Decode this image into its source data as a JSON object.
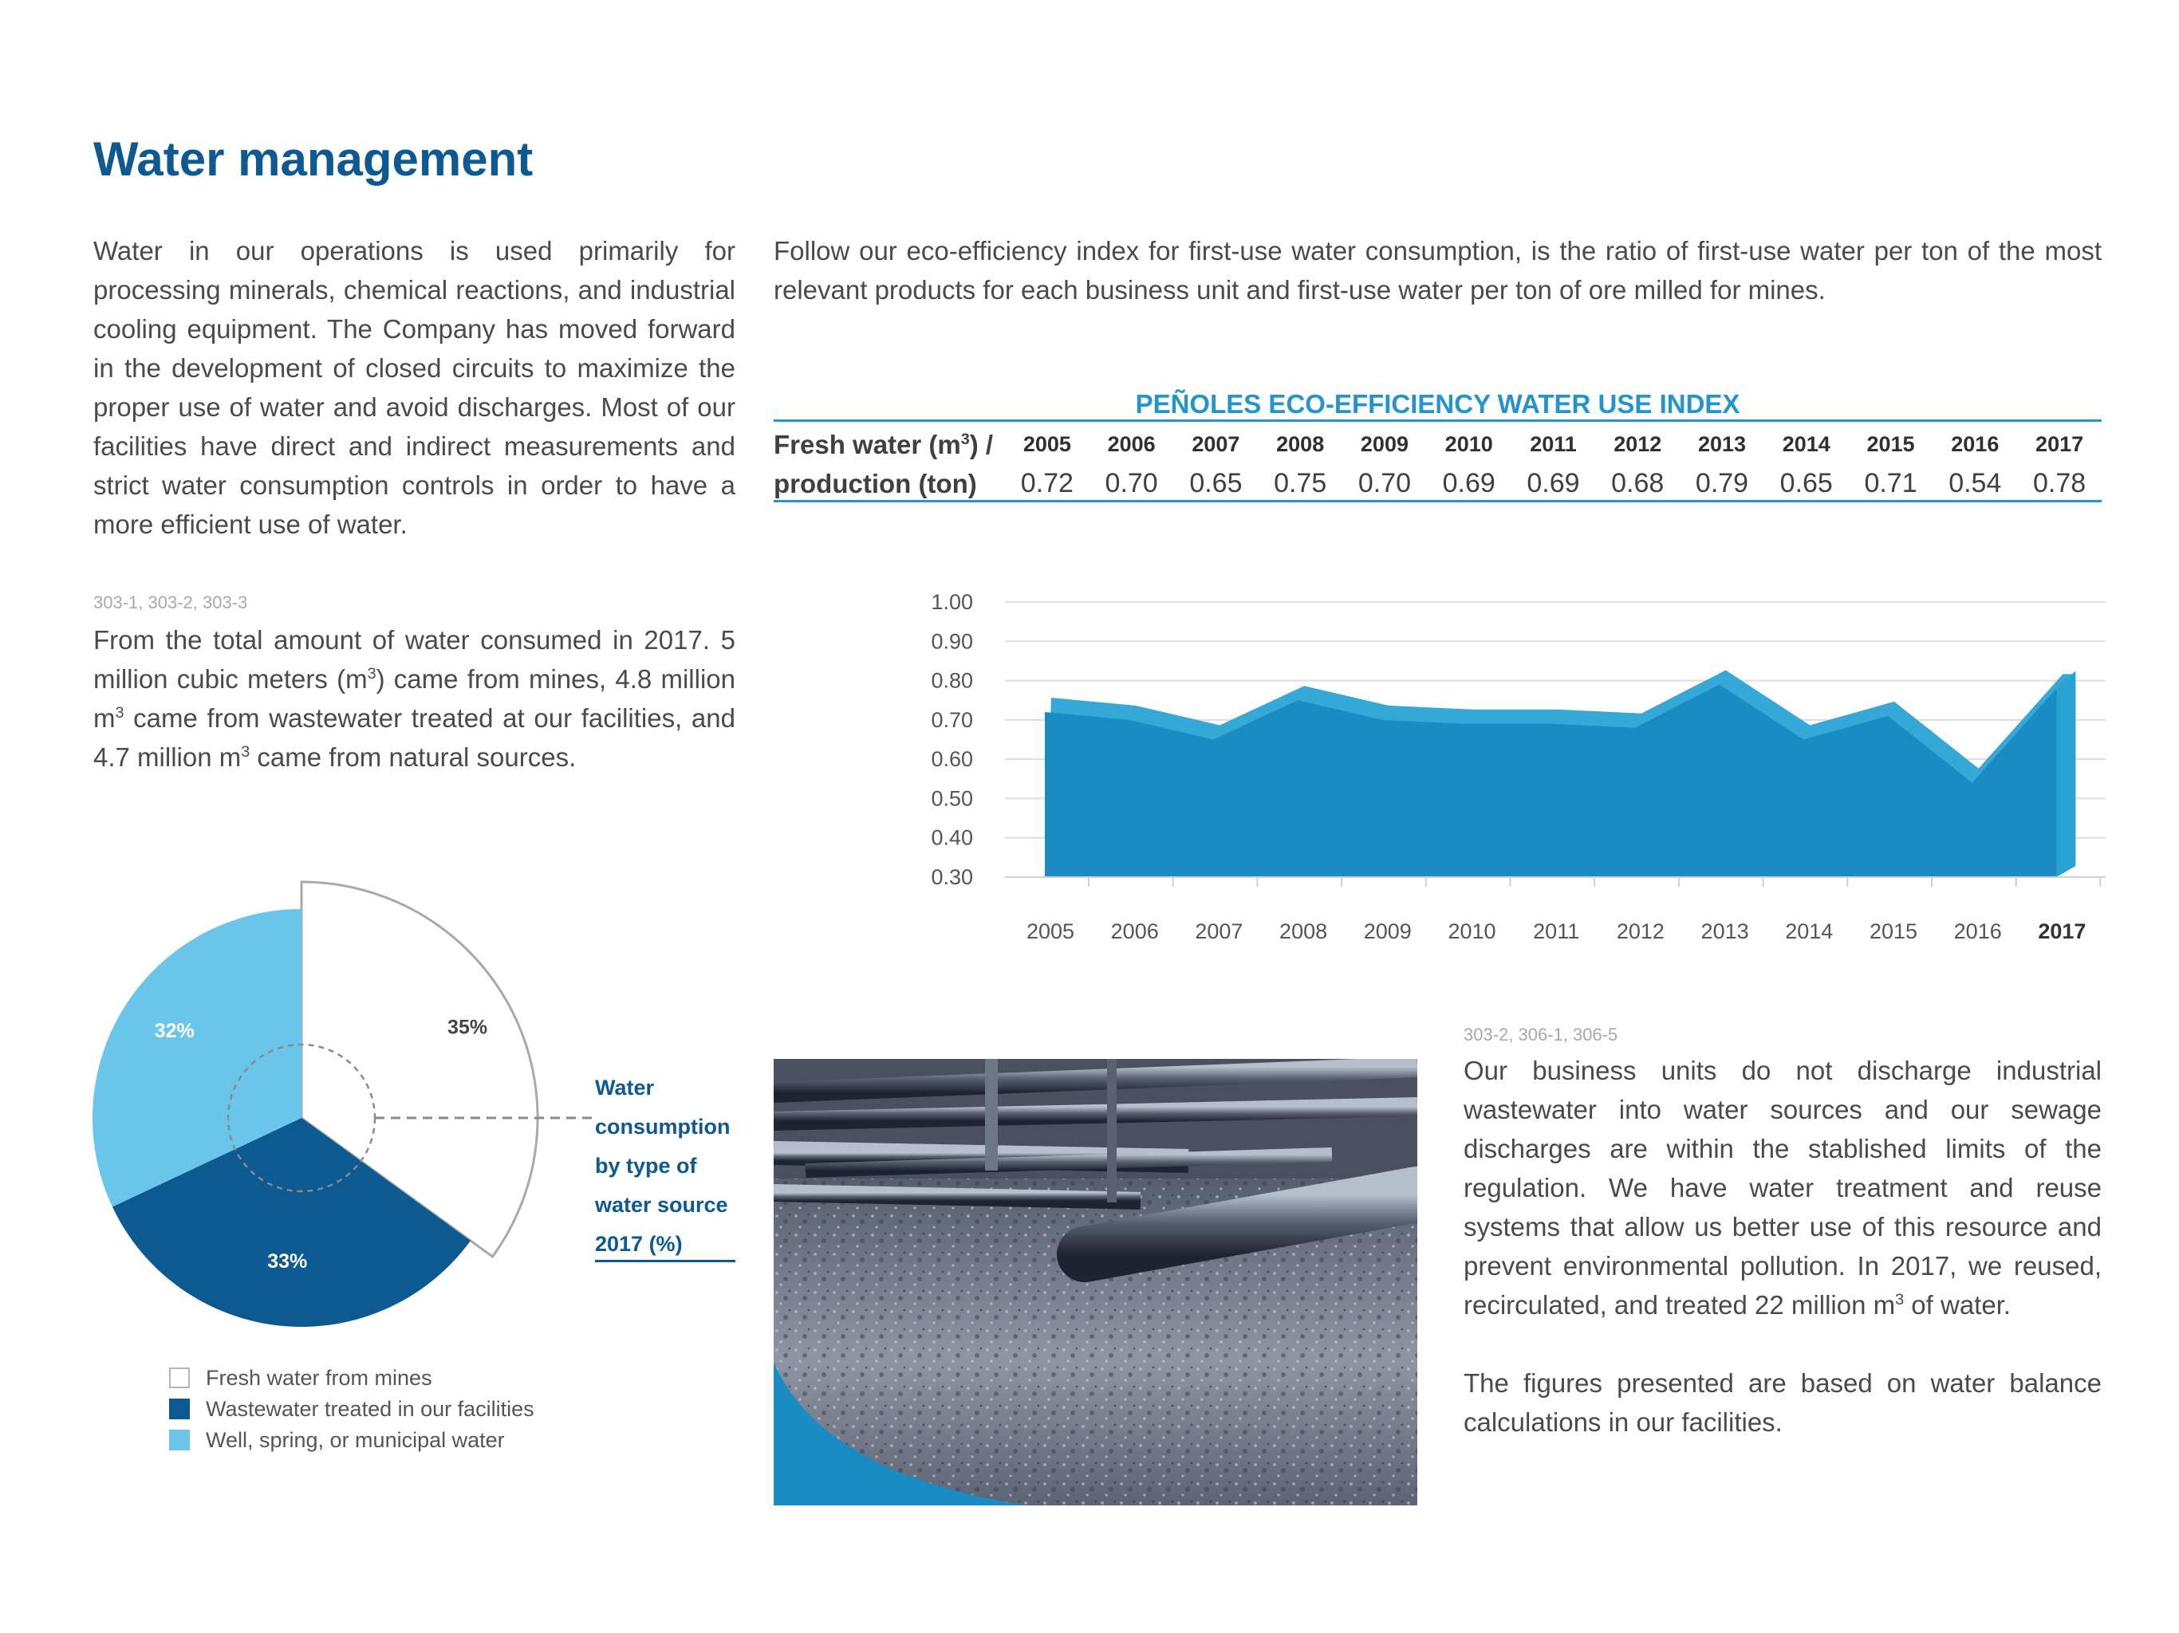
{
  "page": {
    "title": "Water management"
  },
  "intro": {
    "text": "Water in our operations is used primarily for processing minerals, chemical reactions, and industrial cooling equipment. The Company has moved forward in the development of closed circuits to maximize the proper use of water and avoid discharges. Most of our facilities have direct and indirect measurements and strict water consumption controls in order to have a more efficient use of water."
  },
  "eco_text": {
    "text": "Follow our eco-efficiency index for first-use water consumption, is the ratio of first-use water per ton of the most relevant products for each business unit and first-use water per ton of ore milled for mines."
  },
  "consumption": {
    "codes": "303-1, 303-2, 303-3",
    "part1": "From the total amount of water consumed in 2017. 5 million cubic meters (m",
    "sup1": "3",
    "part2": ") came from mines, 4.8 million m",
    "sup2": "3",
    "part3": " came from wastewater treated at our facilities, and 4.7 million m",
    "sup3": "3",
    "part4": " came from natural sources."
  },
  "table": {
    "title": "PEÑOLES ECO-EFFICIENCY WATER USE INDEX",
    "metric_line1_a": "Fresh water (m",
    "metric_line1_sup": "3",
    "metric_line1_b": ") /",
    "metric_line2": "production (ton)",
    "years": [
      "2005",
      "2006",
      "2007",
      "2008",
      "2009",
      "2010",
      "2011",
      "2012",
      "2013",
      "2014",
      "2015",
      "2016",
      "2017"
    ],
    "values": [
      "0.72",
      "0.70",
      "0.65",
      "0.75",
      "0.70",
      "0.69",
      "0.69",
      "0.68",
      "0.79",
      "0.65",
      "0.71",
      "0.54",
      "0.78"
    ]
  },
  "chart_data": [
    {
      "type": "area",
      "title": "",
      "x": [
        "2005",
        "2006",
        "2007",
        "2008",
        "2009",
        "2010",
        "2011",
        "2012",
        "2013",
        "2014",
        "2015",
        "2016",
        "2017"
      ],
      "series": [
        {
          "values": [
            0.72,
            0.7,
            0.65,
            0.75,
            0.7,
            0.69,
            0.69,
            0.68,
            0.79,
            0.65,
            0.71,
            0.54,
            0.78
          ]
        }
      ],
      "yticks": [
        "1.00",
        "0.90",
        "0.80",
        "0.70",
        "0.60",
        "0.50",
        "0.40",
        "0.30"
      ],
      "ylim": [
        0.3,
        1.0
      ],
      "grid": true,
      "highlight_category": "2017",
      "colors": {
        "front": "#1a8bc3",
        "top": "#35a8d7",
        "side": "#29a2d2"
      }
    },
    {
      "type": "pie",
      "title": "Water consumption by type of water source 2017 (%)",
      "labels": [
        "Fresh water from mines",
        "Wastewater treated in our facilities",
        "Well, spring, or municipal water"
      ],
      "values": [
        35,
        33,
        32
      ],
      "value_labels": [
        "35%",
        "33%",
        "32%"
      ],
      "colors": [
        "#ffffff",
        "#0d5a93",
        "#69c6ea"
      ]
    }
  ],
  "pie_caption": {
    "line1": "Water",
    "line2": "consumption",
    "line3": "by type of",
    "line4": "water source",
    "line5": "2017 (%)"
  },
  "discharge": {
    "codes": "303-2, 306-1, 306-5",
    "text_a": "Our business units do not discharge industrial wastewater into water sources and our sewage discharges are within the stablished limits of the regulation. We have water treatment and reuse systems that allow us better use of this resource and prevent environmental pollution. In 2017, we reused, recirculated, and treated 22 million m",
    "sup": "3",
    "text_b": " of water.",
    "note": "The figures presented are based on water balance calculations in our facilities."
  }
}
